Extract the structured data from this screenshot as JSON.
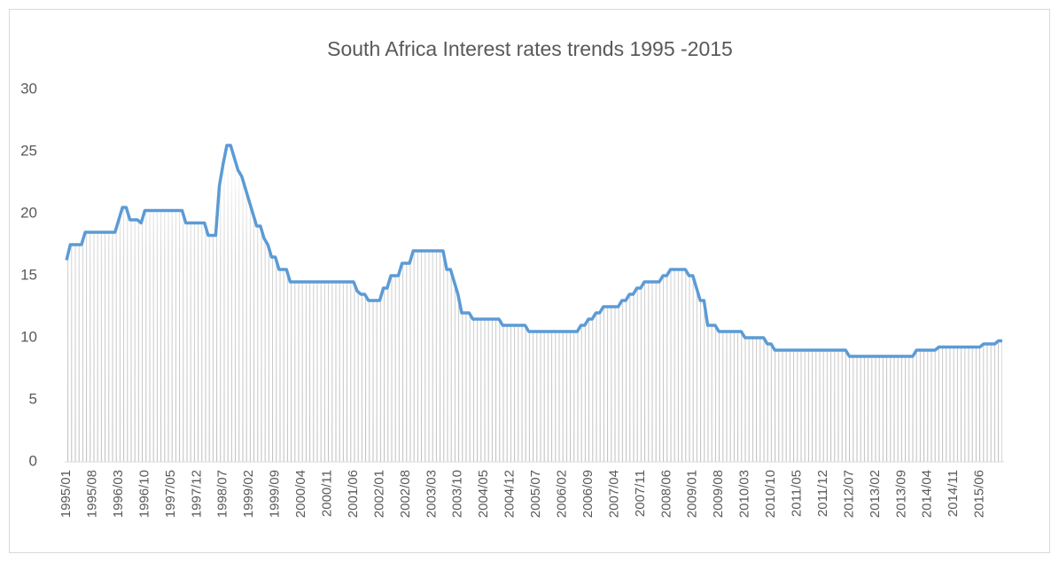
{
  "chart_data": {
    "type": "line",
    "title": "South Africa Interest rates trends 1995 -2015",
    "categories": [
      "1995/01",
      null,
      null,
      null,
      null,
      null,
      null,
      "1995/08",
      null,
      null,
      null,
      null,
      null,
      null,
      "1996/03",
      null,
      null,
      null,
      null,
      null,
      null,
      "1996/10",
      null,
      null,
      null,
      null,
      null,
      null,
      "1997/05",
      null,
      null,
      null,
      null,
      null,
      null,
      "1997/12",
      null,
      null,
      null,
      null,
      null,
      null,
      "1998/07",
      null,
      null,
      null,
      null,
      null,
      null,
      "1999/02",
      null,
      null,
      null,
      null,
      null,
      null,
      "1999/09",
      null,
      null,
      null,
      null,
      null,
      null,
      "2000/04",
      null,
      null,
      null,
      null,
      null,
      null,
      "2000/11",
      null,
      null,
      null,
      null,
      null,
      null,
      "2001/06",
      null,
      null,
      null,
      null,
      null,
      null,
      "2002/01",
      null,
      null,
      null,
      null,
      null,
      null,
      "2002/08",
      null,
      null,
      null,
      null,
      null,
      null,
      "2003/03",
      null,
      null,
      null,
      null,
      null,
      null,
      "2003/10",
      null,
      null,
      null,
      null,
      null,
      null,
      "2004/05",
      null,
      null,
      null,
      null,
      null,
      null,
      "2004/12",
      null,
      null,
      null,
      null,
      null,
      null,
      "2005/07",
      null,
      null,
      null,
      null,
      null,
      null,
      "2006/02",
      null,
      null,
      null,
      null,
      null,
      null,
      "2006/09",
      null,
      null,
      null,
      null,
      null,
      null,
      "2007/04",
      null,
      null,
      null,
      null,
      null,
      null,
      "2007/11",
      null,
      null,
      null,
      null,
      null,
      null,
      "2008/06",
      null,
      null,
      null,
      null,
      null,
      null,
      "2009/01",
      null,
      null,
      null,
      null,
      null,
      null,
      "2009/08",
      null,
      null,
      null,
      null,
      null,
      null,
      "2010/03",
      null,
      null,
      null,
      null,
      null,
      null,
      "2010/10",
      null,
      null,
      null,
      null,
      null,
      null,
      "2011/05",
      null,
      null,
      null,
      null,
      null,
      null,
      "2011/12",
      null,
      null,
      null,
      null,
      null,
      null,
      "2012/07",
      null,
      null,
      null,
      null,
      null,
      null,
      "2013/02",
      null,
      null,
      null,
      null,
      null,
      null,
      "2013/09",
      null,
      null,
      null,
      null,
      null,
      null,
      "2014/04",
      null,
      null,
      null,
      null,
      null,
      null,
      "2014/11",
      null,
      null,
      null,
      null,
      null,
      null,
      "2015/06",
      null,
      null,
      null,
      null,
      null,
      null
    ],
    "values": [
      16.25,
      17.5,
      17.5,
      17.5,
      17.5,
      18.5,
      18.5,
      18.5,
      18.5,
      18.5,
      18.5,
      18.5,
      18.5,
      18.5,
      19.5,
      20.5,
      20.5,
      19.5,
      19.5,
      19.5,
      19.25,
      20.25,
      20.25,
      20.25,
      20.25,
      20.25,
      20.25,
      20.25,
      20.25,
      20.25,
      20.25,
      20.25,
      19.25,
      19.25,
      19.25,
      19.25,
      19.25,
      19.25,
      18.25,
      18.25,
      18.25,
      22.25,
      24,
      25.5,
      25.5,
      24.5,
      23.5,
      23,
      22,
      21,
      20,
      19,
      19,
      18,
      17.5,
      16.5,
      16.5,
      15.5,
      15.5,
      15.5,
      14.5,
      14.5,
      14.5,
      14.5,
      14.5,
      14.5,
      14.5,
      14.5,
      14.5,
      14.5,
      14.5,
      14.5,
      14.5,
      14.5,
      14.5,
      14.5,
      14.5,
      14.5,
      13.75,
      13.5,
      13.5,
      13,
      13,
      13,
      13,
      14,
      14,
      15,
      15,
      15,
      16,
      16,
      16,
      17,
      17,
      17,
      17,
      17,
      17,
      17,
      17,
      17,
      15.5,
      15.5,
      14.5,
      13.5,
      12,
      12,
      12,
      11.5,
      11.5,
      11.5,
      11.5,
      11.5,
      11.5,
      11.5,
      11.5,
      11,
      11,
      11,
      11,
      11,
      11,
      11,
      10.5,
      10.5,
      10.5,
      10.5,
      10.5,
      10.5,
      10.5,
      10.5,
      10.5,
      10.5,
      10.5,
      10.5,
      10.5,
      10.5,
      11,
      11,
      11.5,
      11.5,
      12,
      12,
      12.5,
      12.5,
      12.5,
      12.5,
      12.5,
      13,
      13,
      13.5,
      13.5,
      14,
      14,
      14.5,
      14.5,
      14.5,
      14.5,
      14.5,
      15,
      15,
      15.5,
      15.5,
      15.5,
      15.5,
      15.5,
      15,
      15,
      14,
      13,
      13,
      11,
      11,
      11,
      10.5,
      10.5,
      10.5,
      10.5,
      10.5,
      10.5,
      10.5,
      10,
      10,
      10,
      10,
      10,
      10,
      9.5,
      9.5,
      9,
      9,
      9,
      9,
      9,
      9,
      9,
      9,
      9,
      9,
      9,
      9,
      9,
      9,
      9,
      9,
      9,
      9,
      9,
      9,
      8.5,
      8.5,
      8.5,
      8.5,
      8.5,
      8.5,
      8.5,
      8.5,
      8.5,
      8.5,
      8.5,
      8.5,
      8.5,
      8.5,
      8.5,
      8.5,
      8.5,
      8.5,
      9,
      9,
      9,
      9,
      9,
      9,
      9.25,
      9.25,
      9.25,
      9.25,
      9.25,
      9.25,
      9.25,
      9.25,
      9.25,
      9.25,
      9.25,
      9.25,
      9.5,
      9.5,
      9.5,
      9.5,
      9.75,
      9.75
    ],
    "color": "#5b9bd5",
    "ylim": [
      0,
      30
    ],
    "yticks": [
      0,
      5,
      10,
      15,
      20,
      25,
      30
    ],
    "grid": false
  }
}
